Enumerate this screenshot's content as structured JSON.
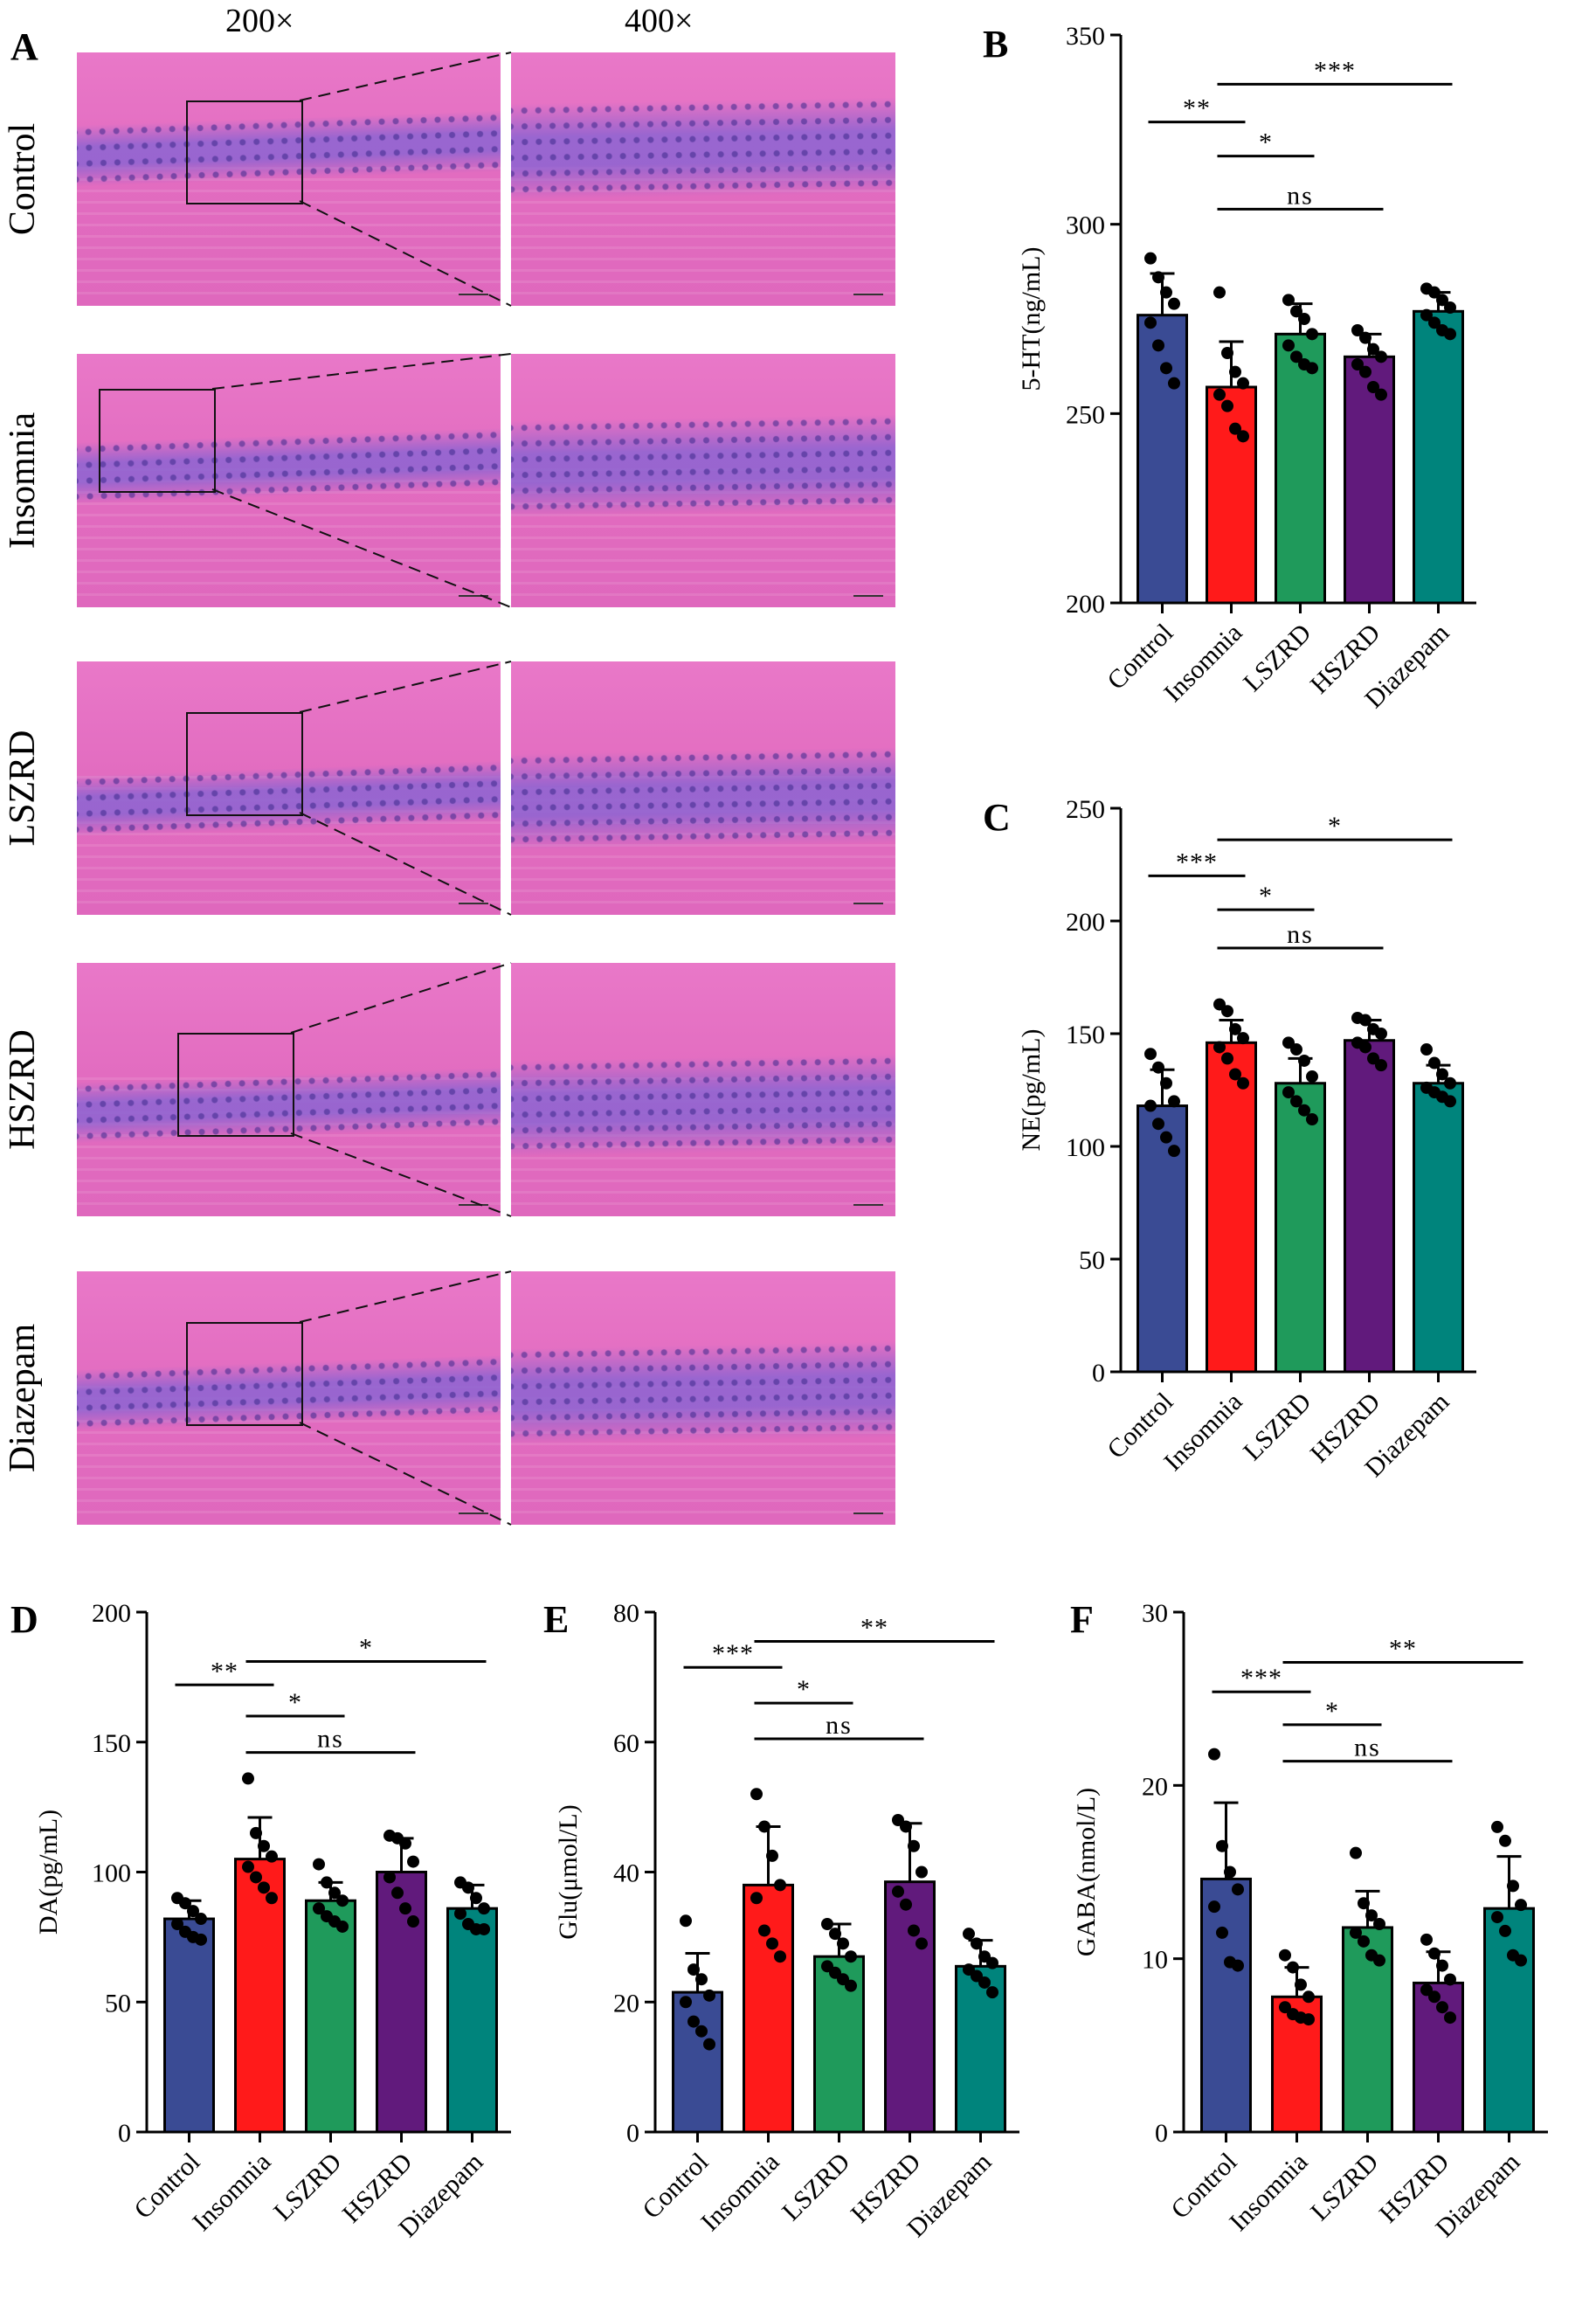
{
  "panels": {
    "A": {
      "letter": "A",
      "mag_low": "200×",
      "mag_high": "400×",
      "rows": [
        "Control",
        "Insomnia",
        "LSZRD",
        "HSZRD",
        "Diazepam"
      ]
    }
  },
  "colors": {
    "Control": "#3a4b94",
    "Insomnia": "#ff1a1a",
    "LSZRD": "#1f9a5b",
    "HSZRD": "#611a7c",
    "Diazepam": "#00847c"
  },
  "chart_data": [
    {
      "id": "B",
      "letter": "B",
      "type": "bar",
      "ylabel": "5-HT(ng/mL)",
      "categories": [
        "Control",
        "Insomnia",
        "LSZRD",
        "HSZRD",
        "Diazepam"
      ],
      "values": [
        276,
        257,
        271,
        265,
        277
      ],
      "errors": [
        11,
        12,
        8,
        6,
        5
      ],
      "points": [
        [
          291,
          286,
          282,
          279,
          274,
          268,
          262,
          258
        ],
        [
          282,
          266,
          261,
          258,
          255,
          252,
          246,
          244
        ],
        [
          280,
          277,
          275,
          271,
          268,
          265,
          263,
          262
        ],
        [
          272,
          270,
          267,
          265,
          263,
          261,
          257,
          255
        ],
        [
          283,
          282,
          280,
          278,
          276,
          274,
          272,
          271
        ]
      ],
      "ylim": [
        200,
        350
      ],
      "yticks": [
        200,
        250,
        300,
        350
      ],
      "sig": [
        {
          "from": 0,
          "to": 1,
          "label": "**",
          "y": 327
        },
        {
          "from": 1,
          "to": 4,
          "label": "***",
          "y": 337
        },
        {
          "from": 1,
          "to": 2,
          "label": "*",
          "y": 318
        },
        {
          "from": 1,
          "to": 3,
          "label": "ns",
          "y": 304
        }
      ]
    },
    {
      "id": "C",
      "letter": "C",
      "type": "bar",
      "ylabel": "NE(pg/mL)",
      "categories": [
        "Control",
        "Insomnia",
        "LSZRD",
        "HSZRD",
        "Diazepam"
      ],
      "values": [
        118,
        146,
        128,
        147,
        128
      ],
      "errors": [
        16,
        10,
        11,
        9,
        8
      ],
      "points": [
        [
          141,
          135,
          128,
          120,
          118,
          110,
          104,
          98
        ],
        [
          163,
          160,
          152,
          148,
          144,
          139,
          132,
          128
        ],
        [
          146,
          143,
          138,
          131,
          124,
          120,
          116,
          112
        ],
        [
          157,
          156,
          152,
          150,
          146,
          144,
          139,
          136
        ],
        [
          143,
          137,
          132,
          128,
          126,
          124,
          122,
          120
        ]
      ],
      "ylim": [
        0,
        250
      ],
      "yticks": [
        0,
        50,
        100,
        150,
        200,
        250
      ],
      "sig": [
        {
          "from": 0,
          "to": 1,
          "label": "***",
          "y": 220
        },
        {
          "from": 1,
          "to": 4,
          "label": "*",
          "y": 236
        },
        {
          "from": 1,
          "to": 2,
          "label": "*",
          "y": 205
        },
        {
          "from": 1,
          "to": 3,
          "label": "ns",
          "y": 188
        }
      ]
    },
    {
      "id": "D",
      "letter": "D",
      "type": "bar",
      "ylabel": "DA(pg/mL)",
      "categories": [
        "Control",
        "Insomnia",
        "LSZRD",
        "HSZRD",
        "Diazepam"
      ],
      "values": [
        82,
        105,
        89,
        100,
        86
      ],
      "errors": [
        7,
        16,
        7,
        13,
        9
      ],
      "points": [
        [
          90,
          88,
          85,
          82,
          80,
          77,
          75,
          74
        ],
        [
          136,
          115,
          110,
          106,
          102,
          98,
          94,
          90
        ],
        [
          103,
          96,
          92,
          89,
          86,
          83,
          81,
          79
        ],
        [
          114,
          113,
          111,
          104,
          98,
          92,
          86,
          81
        ],
        [
          96,
          94,
          90,
          86,
          84,
          80,
          78,
          78
        ]
      ],
      "ylim": [
        0,
        200
      ],
      "yticks": [
        0,
        50,
        100,
        150,
        200
      ],
      "sig": [
        {
          "from": 0,
          "to": 1,
          "label": "**",
          "y": 172
        },
        {
          "from": 1,
          "to": 4,
          "label": "*",
          "y": 181
        },
        {
          "from": 1,
          "to": 2,
          "label": "*",
          "y": 160
        },
        {
          "from": 1,
          "to": 3,
          "label": "ns",
          "y": 146
        }
      ]
    },
    {
      "id": "E",
      "letter": "E",
      "type": "bar",
      "ylabel": "Glu(μmol/L)",
      "categories": [
        "Control",
        "Insomnia",
        "LSZRD",
        "HSZRD",
        "Diazepam"
      ],
      "values": [
        21.5,
        38,
        27,
        38.5,
        25.5
      ],
      "errors": [
        6,
        9,
        5,
        9,
        4
      ],
      "points": [
        [
          32.5,
          25,
          23.5,
          21,
          20,
          17,
          15.5,
          13.5
        ],
        [
          52,
          47,
          42.5,
          38,
          36,
          31,
          29,
          27
        ],
        [
          32,
          30.5,
          29,
          27,
          25.5,
          24.5,
          23.5,
          22.5
        ],
        [
          48,
          47,
          44,
          40,
          37,
          35,
          31,
          29
        ],
        [
          30.5,
          29,
          27,
          26,
          25,
          24,
          23,
          21.5
        ]
      ],
      "ylim": [
        0,
        80
      ],
      "yticks": [
        0,
        20,
        40,
        60,
        80
      ],
      "sig": [
        {
          "from": 0,
          "to": 1,
          "label": "***",
          "y": 71.5
        },
        {
          "from": 1,
          "to": 4,
          "label": "**",
          "y": 75.5
        },
        {
          "from": 1,
          "to": 2,
          "label": "*",
          "y": 66
        },
        {
          "from": 1,
          "to": 3,
          "label": "ns",
          "y": 60.5
        }
      ]
    },
    {
      "id": "F",
      "letter": "F",
      "type": "bar",
      "ylabel": "GABA(nmol/L)",
      "categories": [
        "Control",
        "Insomnia",
        "LSZRD",
        "HSZRD",
        "Diazepam"
      ],
      "values": [
        14.6,
        7.8,
        11.8,
        8.6,
        12.9
      ],
      "errors": [
        4.4,
        1.7,
        2.1,
        1.8,
        3
      ],
      "points": [
        [
          21.8,
          16.5,
          15,
          14,
          13,
          11.5,
          9.8,
          9.6
        ],
        [
          10.2,
          9.5,
          8.5,
          7.8,
          7.2,
          6.8,
          6.6,
          6.5
        ],
        [
          16.1,
          13.2,
          12.5,
          12,
          11.5,
          11,
          10.2,
          9.9
        ],
        [
          11.1,
          10.3,
          9.6,
          8.8,
          8.2,
          7.8,
          7.2,
          6.6
        ],
        [
          17.6,
          16.8,
          14.2,
          13.1,
          12.4,
          11.6,
          10.2,
          9.9
        ]
      ],
      "ylim": [
        0,
        30
      ],
      "yticks": [
        0,
        10,
        20,
        30
      ],
      "sig": [
        {
          "from": 0,
          "to": 1,
          "label": "***",
          "y": 25.4
        },
        {
          "from": 1,
          "to": 4,
          "label": "**",
          "y": 27.1
        },
        {
          "from": 1,
          "to": 2,
          "label": "*",
          "y": 23.5
        },
        {
          "from": 1,
          "to": 3,
          "label": "ns",
          "y": 21.4
        }
      ]
    }
  ]
}
